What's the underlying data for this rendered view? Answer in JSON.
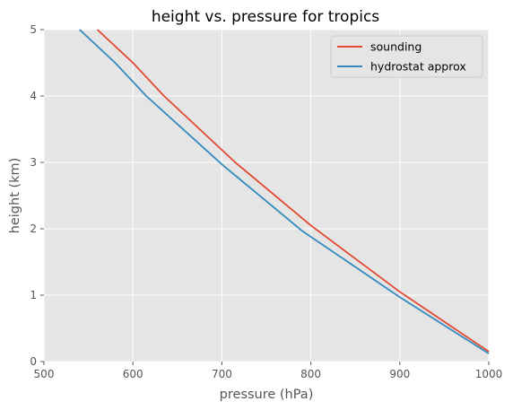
{
  "chart_data": {
    "type": "line",
    "title": "height vs. pressure for tropics",
    "xlabel": "pressure (hPa)",
    "ylabel": "height (km)",
    "xlim": [
      500,
      1000
    ],
    "ylim": [
      0,
      5
    ],
    "xticks": [
      500,
      600,
      700,
      800,
      900,
      1000
    ],
    "yticks": [
      0,
      1,
      2,
      3,
      4,
      5
    ],
    "grid": true,
    "legend_position": "top-right",
    "series": [
      {
        "name": "sounding",
        "color": "#E24A33",
        "points": [
          [
            1000,
            0.15
          ],
          [
            900,
            1.05
          ],
          [
            800,
            2.05
          ],
          [
            715,
            3.0
          ],
          [
            635,
            4.0
          ],
          [
            600,
            4.5
          ],
          [
            560,
            5.0
          ]
        ]
      },
      {
        "name": "hydrostat approx",
        "color": "#348ABD",
        "points": [
          [
            1000,
            0.12
          ],
          [
            900,
            0.97
          ],
          [
            790,
            1.97
          ],
          [
            700,
            2.97
          ],
          [
            615,
            4.0
          ],
          [
            580,
            4.5
          ],
          [
            540,
            5.0
          ]
        ]
      }
    ]
  }
}
